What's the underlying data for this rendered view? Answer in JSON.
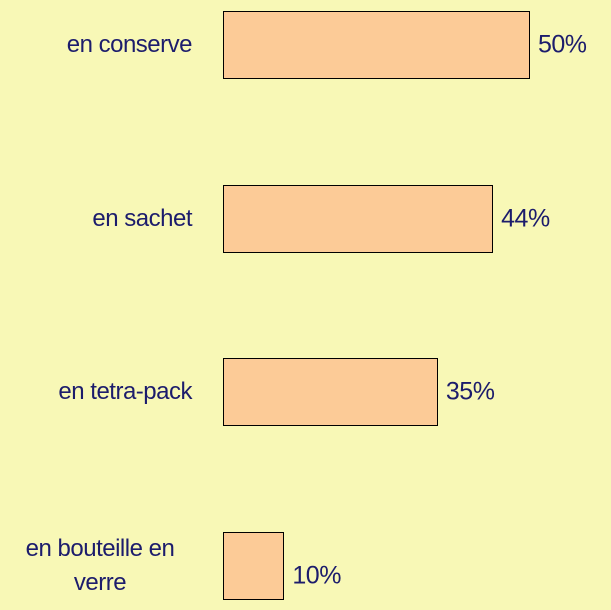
{
  "chart_data": {
    "type": "bar",
    "orientation": "horizontal",
    "categories": [
      "en conserve",
      "en sachet",
      "en tetra-pack",
      "en bouteille en verre"
    ],
    "values": [
      50,
      44,
      35,
      10
    ],
    "value_labels": [
      "50%",
      "44%",
      "35%",
      "10%"
    ],
    "color": "#fccb97"
  }
}
